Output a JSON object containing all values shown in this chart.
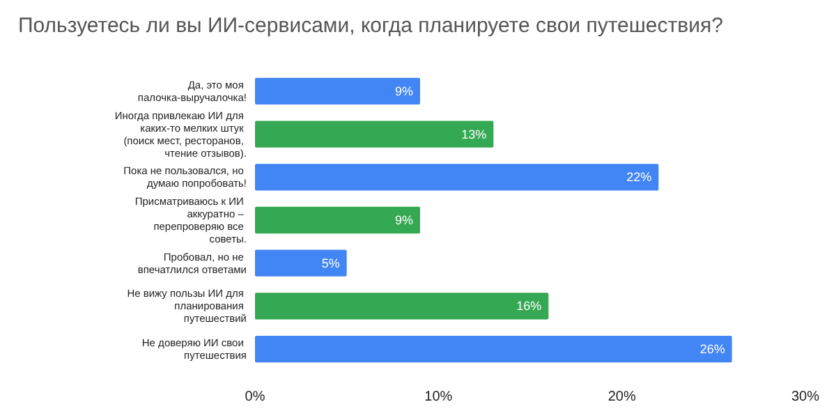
{
  "chart_data": {
    "type": "bar",
    "orientation": "horizontal",
    "title": "Пользуетесь ли вы ИИ-сервисами, когда планируете свои путешествия?",
    "categories": [
      "Да, это моя палочка-выручалочка!",
      "Иногда привлекаю ИИ для каких-то мелких штук (поиск мест, ресторанов, чтение отзывов).",
      "Пока не пользовался, но думаю попробовать!",
      "Присматриваюсь к ИИ аккуратно – перепроверяю все советы.",
      "Пробовал, но не впечатлился ответами",
      "Не вижу пользы ИИ для планирования путешествий",
      "Не доверяю ИИ свои путешествия"
    ],
    "values": [
      9,
      13,
      22,
      9,
      5,
      16,
      26
    ],
    "colors": [
      "#4285f4",
      "#34a853",
      "#4285f4",
      "#34a853",
      "#4285f4",
      "#34a853",
      "#4285f4"
    ],
    "value_labels": [
      "9%",
      "13%",
      "22%",
      "9%",
      "5%",
      "16%",
      "26%"
    ],
    "xlim": [
      0,
      30
    ],
    "xticks": [
      {
        "value": 0,
        "label": "0%"
      },
      {
        "value": 10,
        "label": "10%"
      },
      {
        "value": 20,
        "label": "20%"
      },
      {
        "value": 30,
        "label": "30%"
      }
    ],
    "grid": false
  }
}
